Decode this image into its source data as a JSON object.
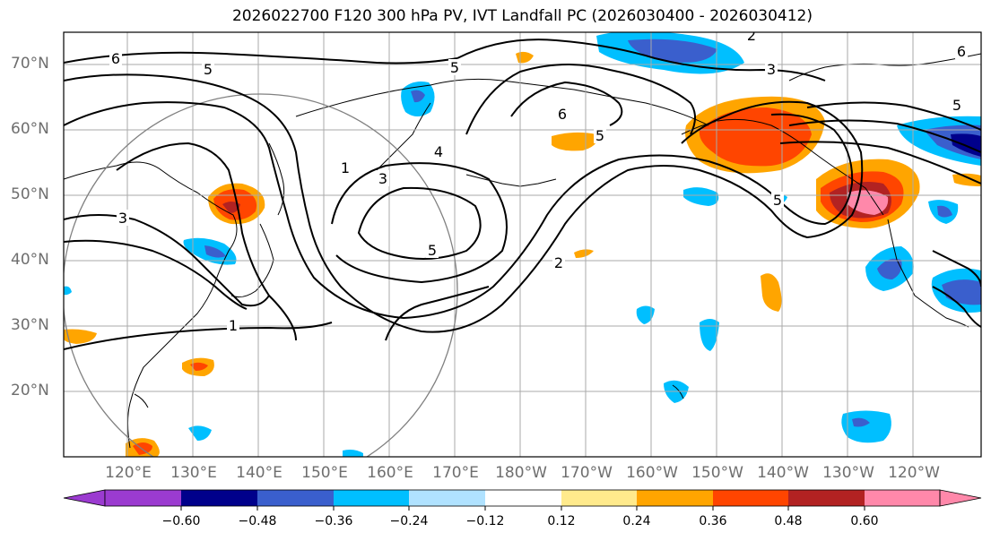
{
  "title": "2026022700 F120 300 hPa PV, IVT Landfall PC (2026030400 - 2026030412)",
  "lat_labels": [
    "70°N",
    "60°N",
    "50°N",
    "40°N",
    "30°N",
    "20°N"
  ],
  "lon_labels": [
    "120°E",
    "130°E",
    "140°E",
    "150°E",
    "160°E",
    "170°E",
    "180°W",
    "170°W",
    "160°W",
    "150°W",
    "140°W",
    "130°W",
    "120°W"
  ],
  "colorbar": {
    "ticks": [
      "−0.60",
      "−0.48",
      "−0.36",
      "−0.24",
      "−0.12",
      "0.12",
      "0.24",
      "0.36",
      "0.48",
      "0.60"
    ],
    "colors": [
      "#9b3bd0",
      "#00008b",
      "#3a5fcd",
      "#00bfff",
      "#b0e2ff",
      "#ffffff",
      "#ffea8c",
      "#ffa500",
      "#ff4500",
      "#b22222",
      "#ff88aa"
    ]
  },
  "contour_labels": [
    "6",
    "5",
    "3",
    "1",
    "3",
    "4",
    "5",
    "6",
    "5",
    "2",
    "1",
    "5",
    "2",
    "3",
    "5",
    "5",
    "6"
  ]
}
